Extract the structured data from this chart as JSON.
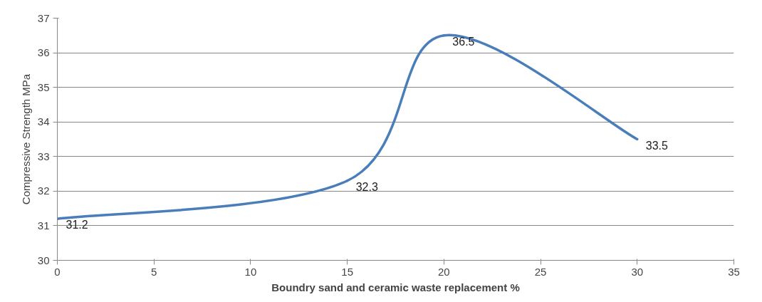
{
  "chart_data": {
    "type": "line",
    "xlabel": "Boundry sand and ceramic waste replacement %",
    "ylabel": "Compressive Strength MPa",
    "x": [
      0,
      15,
      20,
      30
    ],
    "series": [
      {
        "color": "#4a7ebb",
        "values": [
          31.2,
          32.3,
          36.5,
          33.5
        ]
      }
    ],
    "xlim": [
      0,
      35
    ],
    "xticks": [
      0,
      5,
      10,
      15,
      20,
      25,
      30,
      35
    ],
    "ylim": [
      30,
      37
    ],
    "yticks": [
      30,
      31,
      32,
      33,
      34,
      35,
      36,
      37
    ],
    "grid": "y",
    "data_labels": true,
    "marker": "none",
    "line_style": "solid"
  }
}
